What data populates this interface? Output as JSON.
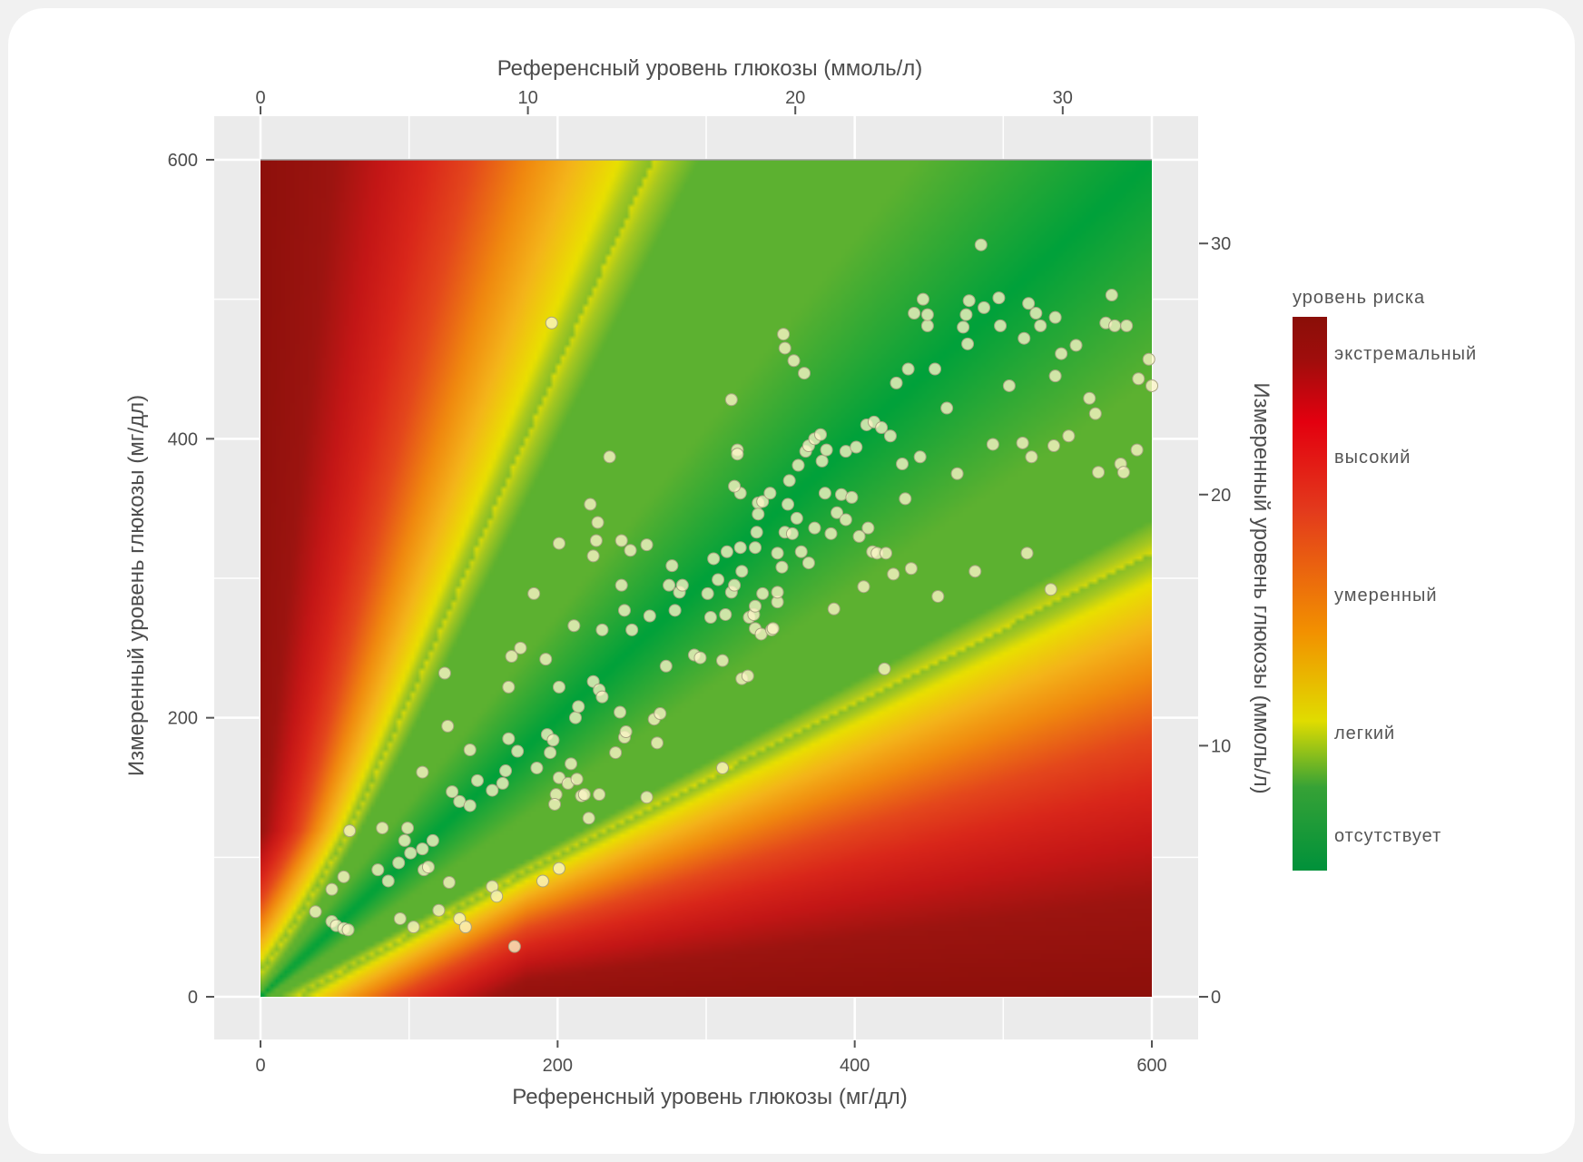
{
  "chart_data": {
    "type": "scatter",
    "subtype": "error-grid-heatmap-with-scatter",
    "xlabel": "Референсный уровень глюкозы (мг/дл)",
    "ylabel": "Измеренный уровень глюкозы (мг/дл)",
    "x2label": "Референсный уровень глюкозы (ммоль/л)",
    "y2label": "Измеренный уровень глюкозы (ммоль/л)",
    "xlim": [
      0,
      600
    ],
    "ylim": [
      0,
      600
    ],
    "x_ticks": [
      "0",
      "200",
      "400",
      "600"
    ],
    "y_ticks": [
      "0",
      "200",
      "400",
      "600"
    ],
    "x2_ticks": [
      "0",
      "10",
      "20",
      "30"
    ],
    "y2_ticks": [
      "0",
      "10",
      "20",
      "30"
    ],
    "grid": true,
    "legend": {
      "title": "уровень риска",
      "placement": "right",
      "labels": [
        "экстремальный",
        "высокий",
        "умеренный",
        "легкий",
        "отсутствует"
      ],
      "colors": [
        "#9c1410",
        "#e3000f",
        "#f29100",
        "#e0dc00",
        "#00913a"
      ]
    },
    "point_color": "#fdf6c8",
    "points": [
      [
        37,
        61
      ],
      [
        48,
        77
      ],
      [
        48,
        54
      ],
      [
        51,
        51
      ],
      [
        56,
        49
      ],
      [
        59,
        48
      ],
      [
        56,
        86
      ],
      [
        60,
        119
      ],
      [
        82,
        121
      ],
      [
        79,
        91
      ],
      [
        86,
        83
      ],
      [
        93,
        96
      ],
      [
        94,
        56
      ],
      [
        97,
        112
      ],
      [
        99,
        121
      ],
      [
        101,
        103
      ],
      [
        103,
        50
      ],
      [
        109,
        106
      ],
      [
        109,
        161
      ],
      [
        110,
        91
      ],
      [
        113,
        93
      ],
      [
        116,
        112
      ],
      [
        120,
        62
      ],
      [
        127,
        82
      ],
      [
        134,
        56
      ],
      [
        138,
        50
      ],
      [
        124,
        232
      ],
      [
        126,
        194
      ],
      [
        129,
        147
      ],
      [
        134,
        140
      ],
      [
        141,
        177
      ],
      [
        141,
        137
      ],
      [
        146,
        155
      ],
      [
        156,
        79
      ],
      [
        159,
        72
      ],
      [
        156,
        148
      ],
      [
        163,
        153
      ],
      [
        165,
        162
      ],
      [
        167,
        222
      ],
      [
        169,
        244
      ],
      [
        171,
        36
      ],
      [
        167,
        185
      ],
      [
        173,
        176
      ],
      [
        175,
        250
      ],
      [
        184,
        289
      ],
      [
        186,
        164
      ],
      [
        190,
        83
      ],
      [
        192,
        242
      ],
      [
        193,
        188
      ],
      [
        195,
        175
      ],
      [
        197,
        184
      ],
      [
        199,
        145
      ],
      [
        198,
        138
      ],
      [
        201,
        92
      ],
      [
        201,
        157
      ],
      [
        196,
        483
      ],
      [
        201,
        325
      ],
      [
        201,
        222
      ],
      [
        207,
        153
      ],
      [
        211,
        266
      ],
      [
        212,
        200
      ],
      [
        214,
        208
      ],
      [
        209,
        167
      ],
      [
        213,
        156
      ],
      [
        216,
        144
      ],
      [
        218,
        145
      ],
      [
        221,
        128
      ],
      [
        224,
        226
      ],
      [
        226,
        327
      ],
      [
        222,
        353
      ],
      [
        224,
        316
      ],
      [
        227,
        340
      ],
      [
        228,
        145
      ],
      [
        228,
        220
      ],
      [
        230,
        215
      ],
      [
        230,
        263
      ],
      [
        235,
        387
      ],
      [
        239,
        175
      ],
      [
        242,
        204
      ],
      [
        245,
        186
      ],
      [
        246,
        190
      ],
      [
        243,
        327
      ],
      [
        245,
        277
      ],
      [
        243,
        295
      ],
      [
        249,
        320
      ],
      [
        250,
        263
      ],
      [
        260,
        324
      ],
      [
        262,
        273
      ],
      [
        260,
        143
      ],
      [
        265,
        199
      ],
      [
        267,
        182
      ],
      [
        269,
        203
      ],
      [
        273,
        237
      ],
      [
        275,
        295
      ],
      [
        277,
        309
      ],
      [
        279,
        277
      ],
      [
        282,
        290
      ],
      [
        284,
        295
      ],
      [
        292,
        245
      ],
      [
        296,
        243
      ],
      [
        301,
        289
      ],
      [
        303,
        272
      ],
      [
        305,
        314
      ],
      [
        308,
        299
      ],
      [
        311,
        241
      ],
      [
        311,
        164
      ],
      [
        313,
        274
      ],
      [
        314,
        319
      ],
      [
        317,
        290
      ],
      [
        319,
        295
      ],
      [
        317,
        428
      ],
      [
        321,
        392
      ],
      [
        323,
        361
      ],
      [
        321,
        389
      ],
      [
        319,
        366
      ],
      [
        323,
        322
      ],
      [
        324,
        305
      ],
      [
        324,
        228
      ],
      [
        328,
        230
      ],
      [
        329,
        272
      ],
      [
        332,
        274
      ],
      [
        333,
        280
      ],
      [
        333,
        264
      ],
      [
        334,
        333
      ],
      [
        333,
        322
      ],
      [
        335,
        354
      ],
      [
        335,
        346
      ],
      [
        337,
        260
      ],
      [
        338,
        289
      ],
      [
        338,
        355
      ],
      [
        343,
        361
      ],
      [
        344,
        263
      ],
      [
        345,
        264
      ],
      [
        348,
        283
      ],
      [
        348,
        290
      ],
      [
        352,
        475
      ],
      [
        353,
        465
      ],
      [
        351,
        308
      ],
      [
        348,
        318
      ],
      [
        353,
        333
      ],
      [
        355,
        353
      ],
      [
        356,
        370
      ],
      [
        358,
        332
      ],
      [
        359,
        456
      ],
      [
        361,
        343
      ],
      [
        362,
        381
      ],
      [
        364,
        319
      ],
      [
        366,
        447
      ],
      [
        367,
        391
      ],
      [
        369,
        395
      ],
      [
        369,
        311
      ],
      [
        373,
        400
      ],
      [
        373,
        336
      ],
      [
        377,
        403
      ],
      [
        378,
        384
      ],
      [
        380,
        361
      ],
      [
        381,
        392
      ],
      [
        384,
        332
      ],
      [
        388,
        347
      ],
      [
        386,
        278
      ],
      [
        391,
        360
      ],
      [
        394,
        391
      ],
      [
        394,
        342
      ],
      [
        398,
        358
      ],
      [
        401,
        394
      ],
      [
        403,
        330
      ],
      [
        406,
        294
      ],
      [
        408,
        410
      ],
      [
        409,
        336
      ],
      [
        412,
        319
      ],
      [
        413,
        412
      ],
      [
        415,
        318
      ],
      [
        418,
        408
      ],
      [
        420,
        235
      ],
      [
        421,
        318
      ],
      [
        424,
        402
      ],
      [
        426,
        303
      ],
      [
        428,
        440
      ],
      [
        432,
        382
      ],
      [
        434,
        357
      ],
      [
        436,
        450
      ],
      [
        438,
        307
      ],
      [
        440,
        490
      ],
      [
        444,
        387
      ],
      [
        446,
        500
      ],
      [
        449,
        481
      ],
      [
        449,
        489
      ],
      [
        454,
        450
      ],
      [
        456,
        287
      ],
      [
        462,
        422
      ],
      [
        469,
        375
      ],
      [
        473,
        480
      ],
      [
        475,
        489
      ],
      [
        476,
        468
      ],
      [
        477,
        499
      ],
      [
        481,
        305
      ],
      [
        485,
        539
      ],
      [
        487,
        494
      ],
      [
        493,
        396
      ],
      [
        497,
        501
      ],
      [
        498,
        481
      ],
      [
        504,
        438
      ],
      [
        513,
        397
      ],
      [
        514,
        472
      ],
      [
        516,
        318
      ],
      [
        517,
        497
      ],
      [
        519,
        387
      ],
      [
        522,
        490
      ],
      [
        525,
        481
      ],
      [
        532,
        292
      ],
      [
        534,
        395
      ],
      [
        535,
        445
      ],
      [
        535,
        487
      ],
      [
        539,
        461
      ],
      [
        544,
        402
      ],
      [
        549,
        467
      ],
      [
        558,
        429
      ],
      [
        562,
        418
      ],
      [
        564,
        376
      ],
      [
        569,
        483
      ],
      [
        573,
        503
      ],
      [
        575,
        481
      ],
      [
        579,
        382
      ],
      [
        581,
        376
      ],
      [
        583,
        481
      ],
      [
        590,
        392
      ],
      [
        591,
        443
      ],
      [
        598,
        457
      ],
      [
        600,
        438
      ]
    ]
  }
}
